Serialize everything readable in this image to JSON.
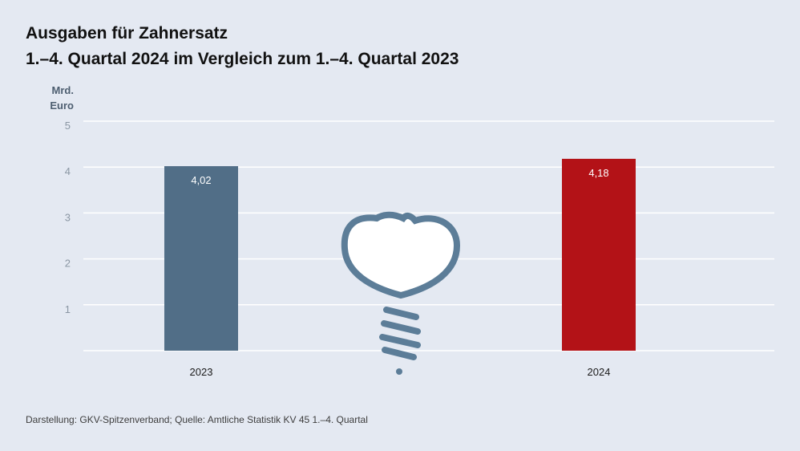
{
  "title_line1": "Ausgaben für Zahnersatz",
  "title_line2": "1.–4. Quartal 2024 im Vergleich zum 1.–4. Quartal 2023",
  "unit_line1": "Mrd.",
  "unit_line2": "Euro",
  "source": "Darstellung: GKV-Spitzenverband; Quelle: Amtliche Statistik KV 45 1.–4. Quartal",
  "chart_data": {
    "type": "bar",
    "title": "Ausgaben für Zahnersatz",
    "subtitle": "1.–4. Quartal 2024 im Vergleich zum 1.–4. Quartal 2023",
    "ylabel": "Mrd. Euro",
    "xlabel": "",
    "categories": [
      "2023",
      "2024"
    ],
    "values": [
      4.02,
      4.18
    ],
    "value_labels": [
      "4,02",
      "4,18"
    ],
    "colors": [
      "#516e87",
      "#b31217"
    ],
    "ylim": [
      0,
      5
    ],
    "yticks": [
      1,
      2,
      3,
      4,
      5
    ],
    "grid": true,
    "decoration": "tooth-implant-icon"
  }
}
